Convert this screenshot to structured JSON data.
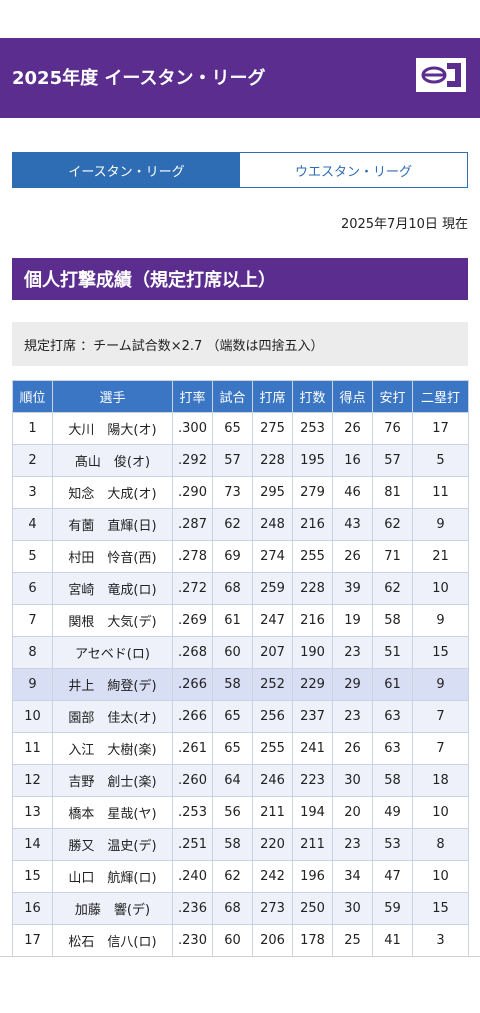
{
  "header": {
    "title": "2025年度 イースタン・リーグ",
    "logo": "el-logo"
  },
  "tabs": [
    {
      "label": "イースタン・リーグ",
      "active": true
    },
    {
      "label": "ウエスタン・リーグ",
      "active": false
    }
  ],
  "date_text": "2025年7月10日 現在",
  "section_title": "個人打撃成績（規定打席以上）",
  "note": "規定打席 ：チーム試合数×2.7 （端数は四捨五入）",
  "table": {
    "headers": [
      "順位",
      "選手",
      "打率",
      "試合",
      "打席",
      "打数",
      "得点",
      "安打",
      "二塁打"
    ],
    "rows": [
      [
        "1",
        "大川　陽大(オ)",
        ".300",
        "65",
        "275",
        "253",
        "26",
        "76",
        "17"
      ],
      [
        "2",
        "髙山　俊(オ)",
        ".292",
        "57",
        "228",
        "195",
        "16",
        "57",
        "5"
      ],
      [
        "3",
        "知念　大成(オ)",
        ".290",
        "73",
        "295",
        "279",
        "46",
        "81",
        "11"
      ],
      [
        "4",
        "有薗　直輝(日)",
        ".287",
        "62",
        "248",
        "216",
        "43",
        "62",
        "9"
      ],
      [
        "5",
        "村田　怜音(西)",
        ".278",
        "69",
        "274",
        "255",
        "26",
        "71",
        "21"
      ],
      [
        "6",
        "宮崎　竜成(ロ)",
        ".272",
        "68",
        "259",
        "228",
        "39",
        "62",
        "10"
      ],
      [
        "7",
        "関根　大気(デ)",
        ".269",
        "61",
        "247",
        "216",
        "19",
        "58",
        "9"
      ],
      [
        "8",
        "アセベド(ロ)",
        ".268",
        "60",
        "207",
        "190",
        "23",
        "51",
        "15"
      ],
      [
        "9",
        "井上　絢登(デ)",
        ".266",
        "58",
        "252",
        "229",
        "29",
        "61",
        "9"
      ],
      [
        "10",
        "園部　佳太(オ)",
        ".266",
        "65",
        "256",
        "237",
        "23",
        "63",
        "7"
      ],
      [
        "11",
        "入江　大樹(楽)",
        ".261",
        "65",
        "255",
        "241",
        "26",
        "63",
        "7"
      ],
      [
        "12",
        "吉野　創士(楽)",
        ".260",
        "64",
        "246",
        "223",
        "30",
        "58",
        "18"
      ],
      [
        "13",
        "橋本　星哉(ヤ)",
        ".253",
        "56",
        "211",
        "194",
        "20",
        "49",
        "10"
      ],
      [
        "14",
        "勝又　温史(デ)",
        ".251",
        "58",
        "220",
        "211",
        "23",
        "53",
        "8"
      ],
      [
        "15",
        "山口　航輝(ロ)",
        ".240",
        "62",
        "242",
        "196",
        "34",
        "47",
        "10"
      ],
      [
        "16",
        "加藤　響(デ)",
        ".236",
        "68",
        "273",
        "250",
        "30",
        "59",
        "15"
      ],
      [
        "17",
        "松石　信八(ロ)",
        ".230",
        "60",
        "206",
        "178",
        "25",
        "41",
        "3"
      ]
    ]
  }
}
